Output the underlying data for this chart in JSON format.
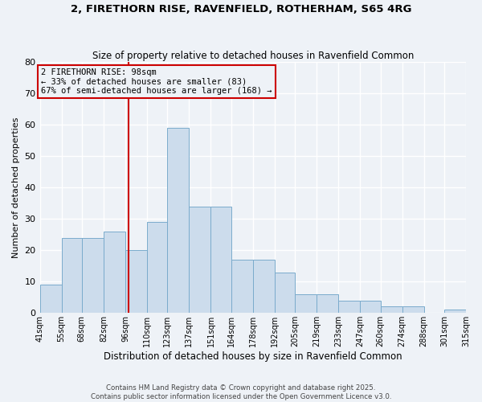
{
  "title": "2, FIRETHORN RISE, RAVENFIELD, ROTHERHAM, S65 4RG",
  "subtitle": "Size of property relative to detached houses in Ravenfield Common",
  "xlabel": "Distribution of detached houses by size in Ravenfield Common",
  "ylabel": "Number of detached properties",
  "bar_color": "#ccdcec",
  "bar_edge_color": "#7aaBcc",
  "bin_edges": [
    41,
    55,
    68,
    82,
    96,
    110,
    123,
    137,
    151,
    164,
    178,
    192,
    205,
    219,
    233,
    247,
    260,
    274,
    288,
    301,
    315
  ],
  "counts": [
    9,
    24,
    24,
    26,
    20,
    29,
    59,
    34,
    34,
    17,
    17,
    13,
    6,
    6,
    4,
    4,
    2,
    2,
    0,
    1
  ],
  "bin_labels": [
    "41sqm",
    "55sqm",
    "68sqm",
    "82sqm",
    "96sqm",
    "110sqm",
    "123sqm",
    "137sqm",
    "151sqm",
    "164sqm",
    "178sqm",
    "192sqm",
    "205sqm",
    "219sqm",
    "233sqm",
    "247sqm",
    "260sqm",
    "274sqm",
    "288sqm",
    "301sqm",
    "315sqm"
  ],
  "property_size": 98,
  "vline_color": "#cc0000",
  "annotation_text": "2 FIRETHORN RISE: 98sqm\n← 33% of detached houses are smaller (83)\n67% of semi-detached houses are larger (168) →",
  "ylim": [
    0,
    80
  ],
  "yticks": [
    0,
    10,
    20,
    30,
    40,
    50,
    60,
    70,
    80
  ],
  "footer": "Contains HM Land Registry data © Crown copyright and database right 2025.\nContains public sector information licensed under the Open Government Licence v3.0.",
  "background_color": "#eef2f7",
  "grid_color": "#ffffff"
}
